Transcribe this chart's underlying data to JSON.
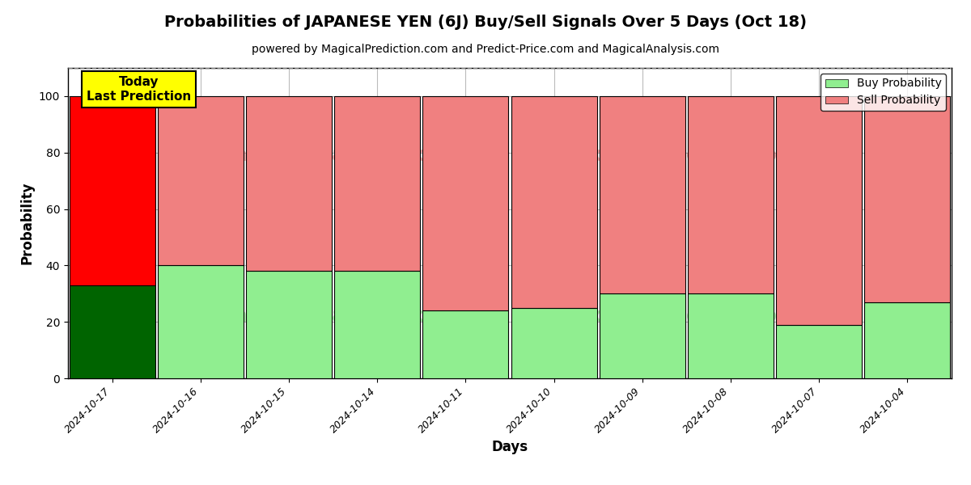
{
  "title": "Probabilities of JAPANESE YEN (6J) Buy/Sell Signals Over 5 Days (Oct 18)",
  "subtitle": "powered by MagicalPrediction.com and Predict-Price.com and MagicalAnalysis.com",
  "xlabel": "Days",
  "ylabel": "Probability",
  "categories": [
    "2024-10-17",
    "2024-10-16",
    "2024-10-15",
    "2024-10-14",
    "2024-10-11",
    "2024-10-10",
    "2024-10-09",
    "2024-10-08",
    "2024-10-07",
    "2024-10-04"
  ],
  "buy_values": [
    33,
    40,
    38,
    38,
    24,
    25,
    30,
    30,
    19,
    27
  ],
  "sell_values": [
    67,
    60,
    62,
    62,
    76,
    75,
    70,
    70,
    81,
    73
  ],
  "today_buy_color": "#006400",
  "today_sell_color": "#ff0000",
  "buy_color": "#90EE90",
  "sell_color": "#F08080",
  "today_label_bg": "#ffff00",
  "today_label_text": "Today\nLast Prediction",
  "legend_buy": "Buy Probability",
  "legend_sell": "Sell Probability",
  "ylim": [
    0,
    110
  ],
  "dashed_line_y": 110,
  "watermark_top_left": "MagicalAnalysis.com",
  "watermark_top_right": "MagicalPrediction.com",
  "watermark_bot_left": "MagicalAnalysis.com",
  "watermark_bot_right": "MagicalPrediction.com",
  "background_color": "#ffffff",
  "grid_color": "#bbbbbb",
  "bar_width": 0.97,
  "title_fontsize": 14,
  "subtitle_fontsize": 10,
  "axis_label_fontsize": 12,
  "tick_fontsize": 9,
  "legend_fontsize": 10
}
